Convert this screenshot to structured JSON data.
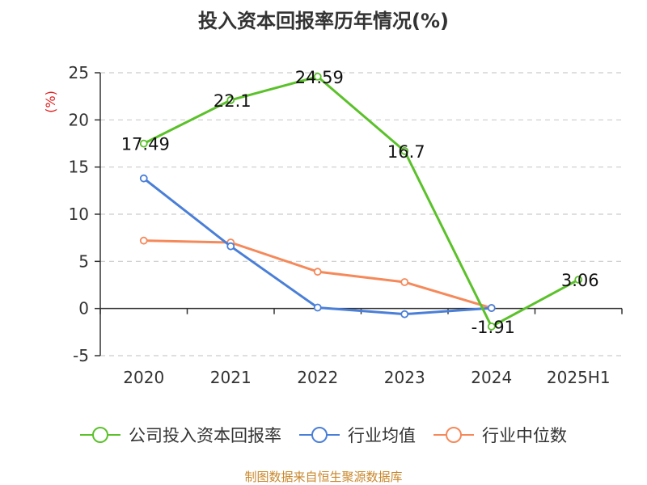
{
  "chart_data": {
    "type": "line",
    "title": "投入资本回报率历年情况(%)",
    "unit": "(%)",
    "categories": [
      "2020",
      "2021",
      "2022",
      "2023",
      "2024",
      "2025H1"
    ],
    "ylim": [
      -5,
      25
    ],
    "yticks": [
      "25",
      "20",
      "15",
      "10",
      "5",
      "0",
      "-5"
    ],
    "grid": true,
    "legend_position": "bottom",
    "series": [
      {
        "name": "公司投入资本回报率",
        "color": "#5bc12a",
        "values": [
          17.49,
          22.1,
          24.59,
          16.7,
          -1.91,
          3.06
        ],
        "labels": [
          "17.49",
          "22.1",
          "24.59",
          "16.7",
          "-1.91",
          "3.06"
        ]
      },
      {
        "name": "行业均值",
        "color": "#4a7fd8",
        "values": [
          13.8,
          6.6,
          0.1,
          -0.6,
          0.05,
          null
        ]
      },
      {
        "name": "行业中位数",
        "color": "#f5895a",
        "values": [
          7.2,
          7.0,
          3.9,
          2.8,
          0.05,
          null
        ]
      }
    ]
  },
  "source": "制图数据来自恒生聚源数据库"
}
